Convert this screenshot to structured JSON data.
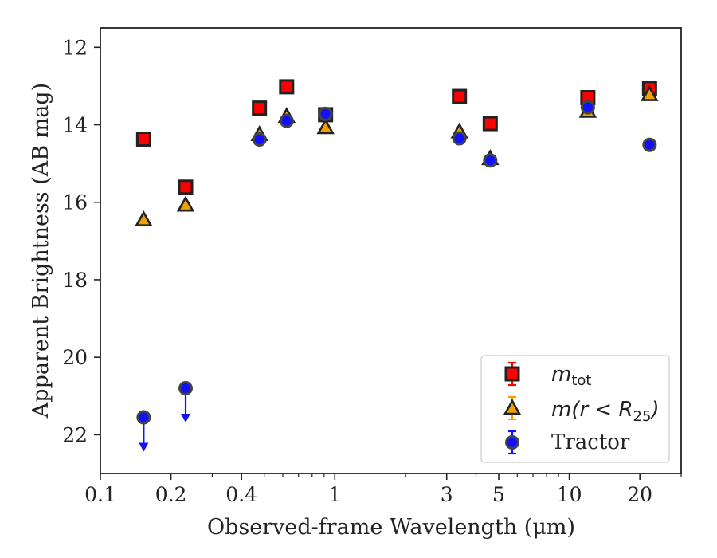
{
  "chart_data": {
    "type": "scatter",
    "xlabel": "Observed-frame Wavelength (μm)",
    "ylabel": "Apparent Brightness (AB mag)",
    "xscale": "log",
    "xlim": [
      0.1,
      30
    ],
    "ylim": [
      23,
      11.5
    ],
    "y_inverted": true,
    "xticks": [
      0.1,
      0.2,
      0.4,
      1,
      3,
      5,
      10,
      20
    ],
    "xtick_labels": [
      "0.1",
      "0.2",
      "0.4",
      "1",
      "3",
      "5",
      "10",
      "20"
    ],
    "yticks": [
      12,
      14,
      16,
      18,
      20,
      22
    ],
    "ytick_labels": [
      "12",
      "14",
      "16",
      "18",
      "20",
      "22"
    ],
    "grid": false,
    "legend_position": "bottom-right",
    "series": [
      {
        "name": "m_tot",
        "marker": "square",
        "color": "#ff0000",
        "points": [
          {
            "x": 0.153,
            "y": 14.37
          },
          {
            "x": 0.231,
            "y": 15.61
          },
          {
            "x": 0.477,
            "y": 13.57
          },
          {
            "x": 0.623,
            "y": 13.02
          },
          {
            "x": 0.913,
            "y": 13.74
          },
          {
            "x": 3.4,
            "y": 13.27
          },
          {
            "x": 4.6,
            "y": 13.97
          },
          {
            "x": 12.0,
            "y": 13.3
          },
          {
            "x": 22.0,
            "y": 13.06
          }
        ]
      },
      {
        "name": "m(r < R_25)",
        "marker": "triangle",
        "color": "#f0a000",
        "points": [
          {
            "x": 0.153,
            "y": 16.45
          },
          {
            "x": 0.231,
            "y": 16.07
          },
          {
            "x": 0.477,
            "y": 14.25
          },
          {
            "x": 0.623,
            "y": 13.78
          },
          {
            "x": 0.913,
            "y": 14.07
          },
          {
            "x": 3.4,
            "y": 14.18
          },
          {
            "x": 4.6,
            "y": 14.87
          },
          {
            "x": 12.0,
            "y": 13.65
          },
          {
            "x": 22.0,
            "y": 13.22
          }
        ]
      },
      {
        "name": "Tractor",
        "marker": "circle",
        "color": "#1010ff",
        "points": [
          {
            "x": 0.153,
            "y": 21.55,
            "upper_limit": true
          },
          {
            "x": 0.231,
            "y": 20.8,
            "upper_limit": true
          },
          {
            "x": 0.477,
            "y": 14.38
          },
          {
            "x": 0.623,
            "y": 13.9
          },
          {
            "x": 0.913,
            "y": 13.72
          },
          {
            "x": 3.4,
            "y": 14.35
          },
          {
            "x": 4.6,
            "y": 14.92
          },
          {
            "x": 12.0,
            "y": 13.55
          },
          {
            "x": 22.0,
            "y": 14.52
          }
        ]
      }
    ]
  },
  "legend": {
    "tot_main": "m",
    "tot_sub": "tot",
    "r25_pre": "m(r < R",
    "r25_sub": "25",
    "r25_post": ")",
    "tractor": "Tractor"
  },
  "colors": {
    "axes": "#222222",
    "marker_edge": "#222222"
  }
}
